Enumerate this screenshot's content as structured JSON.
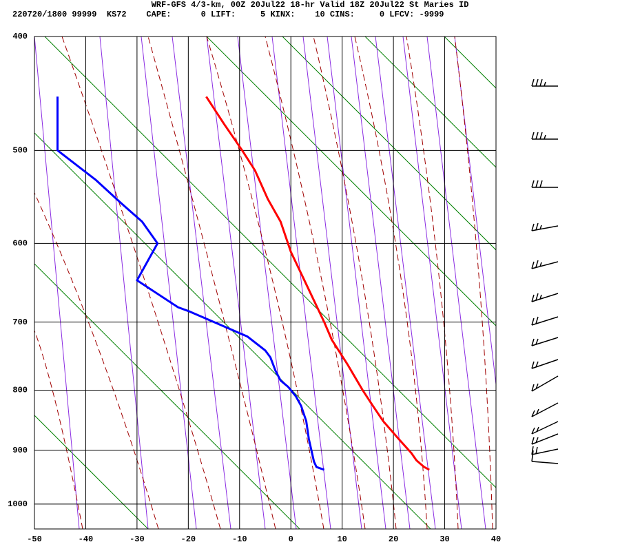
{
  "chart_data": {
    "type": "line",
    "title": "WRF-GFS 4/3-km, 00Z 20Jul22 18-hr Valid 18Z 20Jul22 St Maries ID",
    "subtitle": "220720/1800 99999  KS72    CAPE:      0 LIFT:     5 KINX:    10 CINS:     0 LFCV: -9999",
    "xlim": [
      -50,
      40
    ],
    "xticks": [
      -50,
      -40,
      -30,
      -20,
      -10,
      0,
      10,
      20,
      30,
      40
    ],
    "ylim": [
      400,
      1050
    ],
    "yticks": [
      400,
      500,
      600,
      700,
      800,
      900,
      1000
    ],
    "log_scale": true,
    "grid": true,
    "series": [
      {
        "color": "#ff0000",
        "x": [
          27,
          26,
          24.5,
          23.5,
          21,
          18,
          16,
          14,
          11,
          8,
          6.5,
          3,
          0,
          -2,
          -4.5,
          -7,
          -9.5,
          -13,
          -16.5
        ],
        "y": [
          935,
          930,
          918,
          905,
          880,
          850,
          825,
          800,
          760,
          725,
          700,
          650,
          610,
          575,
          550,
          520,
          500,
          475,
          450
        ]
      },
      {
        "color": "#0000ff",
        "x": [
          6.5,
          5,
          4.5,
          3.5,
          3,
          2,
          1,
          -0.5,
          -2,
          -3,
          -4,
          -5,
          -8.5,
          -20,
          -22,
          -30,
          -26,
          -29,
          -33,
          -38,
          -45.5,
          -45.5,
          -45.5
        ],
        "y": [
          935,
          930,
          920,
          880,
          850,
          825,
          810,
          795,
          785,
          770,
          750,
          740,
          720,
          685,
          680,
          645,
          600,
          575,
          555,
          530,
          500,
          460,
          450
        ]
      }
    ]
  }
}
